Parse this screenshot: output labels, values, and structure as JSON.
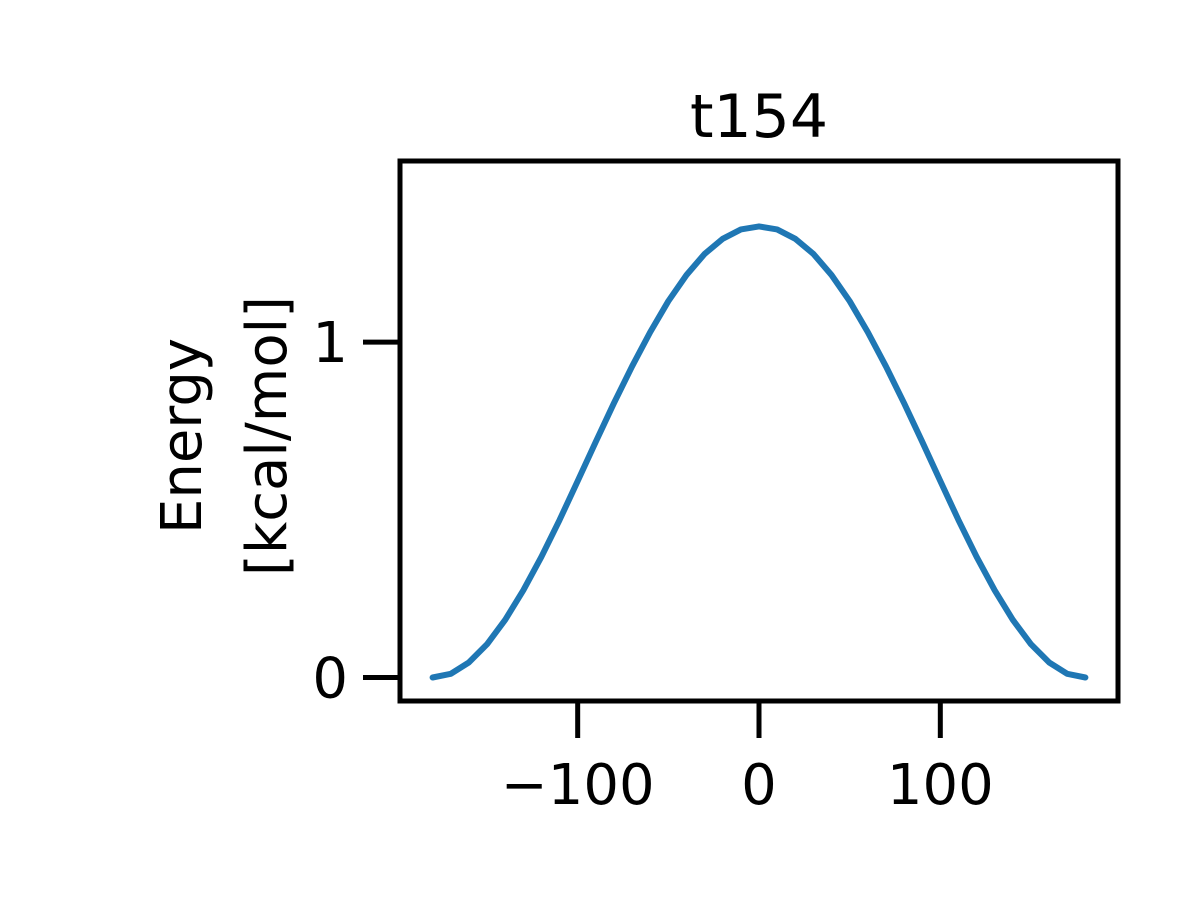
{
  "chart_data": {
    "type": "line",
    "title": "t154",
    "ylabel": [
      "Energy",
      "[kcal/mol]"
    ],
    "xlabel": "",
    "xlim": [
      -198,
      198
    ],
    "ylim": [
      -0.07,
      1.54
    ],
    "xticks": [
      -100,
      0,
      100
    ],
    "xtick_labels": [
      "−100",
      "0",
      "100"
    ],
    "yticks": [
      0,
      1
    ],
    "ytick_labels": [
      "0",
      "1"
    ],
    "grid": false,
    "series": [
      {
        "color": "#1f77b4",
        "x": [
          -180,
          -170,
          -160,
          -150,
          -140,
          -130,
          -120,
          -110,
          -100,
          -90,
          -80,
          -70,
          -60,
          -50,
          -40,
          -30,
          -20,
          -10,
          0,
          10,
          20,
          30,
          40,
          50,
          60,
          70,
          80,
          90,
          100,
          110,
          120,
          130,
          140,
          150,
          160,
          170,
          180
        ],
        "y": [
          0.0,
          0.011,
          0.045,
          0.099,
          0.172,
          0.26,
          0.36,
          0.47,
          0.586,
          0.703,
          0.818,
          0.928,
          1.03,
          1.122,
          1.2,
          1.263,
          1.308,
          1.336,
          1.345,
          1.336,
          1.308,
          1.263,
          1.2,
          1.122,
          1.03,
          0.928,
          0.818,
          0.703,
          0.586,
          0.47,
          0.36,
          0.26,
          0.172,
          0.099,
          0.045,
          0.011,
          0.0
        ]
      }
    ]
  }
}
